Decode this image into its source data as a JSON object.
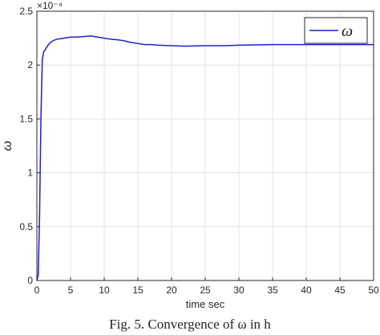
{
  "chart_data": {
    "type": "line",
    "xlabel": "time sec",
    "ylabel": "ω",
    "y_exponent_label": "×10⁻⁴",
    "xlim": [
      0,
      50
    ],
    "ylim": [
      0,
      2.5
    ],
    "x_ticks": [
      "0",
      "5",
      "10",
      "15",
      "20",
      "25",
      "30",
      "35",
      "40",
      "45",
      "50"
    ],
    "y_ticks": [
      "0",
      "0.5",
      "1",
      "1.5",
      "2",
      "2.5"
    ],
    "grid": true,
    "legend_position": "top-right",
    "series": [
      {
        "name": "ω",
        "color": "#1f1fc8",
        "x": [
          0,
          0.2,
          0.4,
          0.6,
          0.8,
          1.0,
          1.3,
          1.6,
          2.0,
          2.5,
          3,
          4,
          5,
          6,
          7,
          8,
          9,
          10,
          11,
          12,
          13,
          14,
          15,
          16,
          17,
          18,
          20,
          22,
          25,
          28,
          30,
          35,
          40,
          45,
          50
        ],
        "y": [
          0,
          0.05,
          0.6,
          1.5,
          2.05,
          2.12,
          2.15,
          2.18,
          2.21,
          2.23,
          2.24,
          2.25,
          2.26,
          2.26,
          2.265,
          2.27,
          2.26,
          2.25,
          2.24,
          2.235,
          2.225,
          2.21,
          2.2,
          2.19,
          2.19,
          2.185,
          2.18,
          2.175,
          2.18,
          2.18,
          2.185,
          2.19,
          2.19,
          2.19,
          2.19
        ]
      }
    ]
  },
  "caption": "Fig. 5. Convergence of ω in h"
}
